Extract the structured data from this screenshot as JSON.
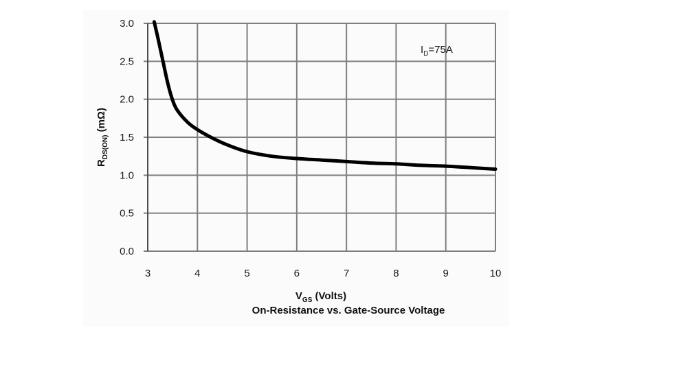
{
  "chart_data": {
    "type": "line",
    "title": "On-Resistance vs. Gate-Source Voltage",
    "xlabel": {
      "main": "V",
      "sub": "GS",
      "rest": " (Volts)"
    },
    "ylabel": {
      "main": "R",
      "sub": "DS(ON)",
      "rest": " (mΩ)"
    },
    "annotation": {
      "main": "I",
      "sub": "D",
      "rest": "=75A"
    },
    "xlim": [
      3,
      10
    ],
    "ylim": [
      0,
      3.0
    ],
    "grid": true,
    "x_ticks": [
      3,
      4,
      5,
      6,
      7,
      8,
      9,
      10
    ],
    "x_tick_labels": [
      "3",
      "4",
      "5",
      "6",
      "7",
      "8",
      "9",
      "10"
    ],
    "y_ticks": [
      0,
      0.5,
      1.0,
      1.5,
      2.0,
      2.5,
      3.0
    ],
    "y_tick_labels": [
      "0.0",
      "0.5",
      "1.0",
      "1.5",
      "2.0",
      "2.5",
      "3.0"
    ],
    "series": [
      {
        "color": "#000000",
        "x": [
          3.13,
          3.2,
          3.3,
          3.4,
          3.5,
          3.6,
          3.8,
          4.0,
          4.3,
          4.6,
          5.0,
          5.5,
          6.0,
          6.5,
          7.0,
          7.5,
          8.0,
          8.5,
          9.0,
          9.5,
          10.0
        ],
        "y": [
          3.02,
          2.82,
          2.52,
          2.22,
          1.99,
          1.85,
          1.7,
          1.6,
          1.49,
          1.4,
          1.31,
          1.25,
          1.22,
          1.2,
          1.18,
          1.16,
          1.15,
          1.13,
          1.12,
          1.1,
          1.08
        ]
      }
    ]
  }
}
